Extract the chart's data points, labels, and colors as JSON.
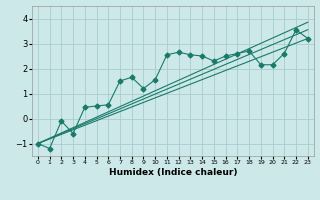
{
  "title": "",
  "xlabel": "Humidex (Indice chaleur)",
  "bg_color": "#cce8e8",
  "grid_color": "#aacccc",
  "line_color": "#1a7a6a",
  "xlim": [
    -0.5,
    23.5
  ],
  "ylim": [
    -1.5,
    4.5
  ],
  "yticks": [
    -1,
    0,
    1,
    2,
    3,
    4
  ],
  "xticks": [
    0,
    1,
    2,
    3,
    4,
    5,
    6,
    7,
    8,
    9,
    10,
    11,
    12,
    13,
    14,
    15,
    16,
    17,
    18,
    19,
    20,
    21,
    22,
    23
  ],
  "line1_x": [
    0,
    1,
    2,
    3,
    4,
    5,
    6,
    7,
    8,
    9,
    10,
    11,
    12,
    13,
    14,
    15,
    16,
    17,
    18,
    19,
    20,
    21,
    22,
    23
  ],
  "line1_y": [
    -1.0,
    -1.2,
    -0.1,
    -0.6,
    0.45,
    0.5,
    0.55,
    1.5,
    1.65,
    1.2,
    1.55,
    2.55,
    2.65,
    2.55,
    2.5,
    2.3,
    2.5,
    2.6,
    2.7,
    2.15,
    2.15,
    2.6,
    3.55,
    3.2
  ],
  "line2_x": [
    0,
    23
  ],
  "line2_y": [
    -1.0,
    3.2
  ],
  "line3_x": [
    0,
    23
  ],
  "line3_y": [
    -1.0,
    3.55
  ],
  "line4_x": [
    0,
    23
  ],
  "line4_y": [
    -1.0,
    3.85
  ],
  "marker": "D",
  "marker_size": 2.5,
  "linewidth": 0.8
}
